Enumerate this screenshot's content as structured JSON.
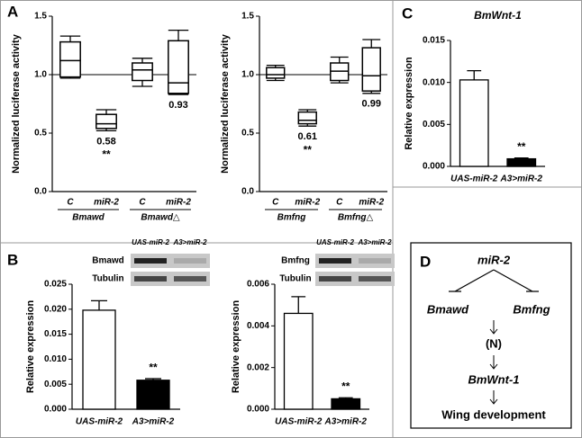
{
  "panel_labels": [
    "A",
    "B",
    "C",
    "D"
  ],
  "chart_data": [
    {
      "type": "box",
      "ylabel": "Normalized luciferase activity",
      "categories": [
        "C",
        "miR-2",
        "C",
        "miR-2"
      ],
      "group_labels": [
        "Bmawd",
        "Bmawd△"
      ],
      "boxes": [
        {
          "min": 0.97,
          "q1": 0.98,
          "median": 1.12,
          "q3": 1.28,
          "max": 1.33
        },
        {
          "min": 0.52,
          "q1": 0.54,
          "median": 0.58,
          "q3": 0.66,
          "max": 0.7
        },
        {
          "min": 0.9,
          "q1": 0.95,
          "median": 1.04,
          "q3": 1.1,
          "max": 1.14
        },
        {
          "min": 0.83,
          "q1": 0.84,
          "median": 0.93,
          "q3": 1.29,
          "max": 1.38
        }
      ],
      "value_labels": [
        null,
        "0.58",
        null,
        "0.93"
      ],
      "significance": [
        null,
        "**",
        null,
        null
      ],
      "hline": 1,
      "color": "#000000",
      "ylim": [
        0,
        1.5
      ],
      "yticks": [
        {
          "value": 0,
          "label": "0.0"
        },
        0.5,
        {
          "value": 1,
          "label": "1.0"
        },
        1.5
      ]
    },
    {
      "type": "box",
      "ylabel": "Normalized luciferase activity",
      "categories": [
        "C",
        "miR-2",
        "C",
        "miR-2"
      ],
      "group_labels": [
        "Bmfng",
        "Bmfng△"
      ],
      "boxes": [
        {
          "min": 0.95,
          "q1": 0.97,
          "median": 1.0,
          "q3": 1.06,
          "max": 1.08
        },
        {
          "min": 0.56,
          "q1": 0.58,
          "median": 0.61,
          "q3": 0.68,
          "max": 0.7
        },
        {
          "min": 0.93,
          "q1": 0.95,
          "median": 1.03,
          "q3": 1.1,
          "max": 1.15
        },
        {
          "min": 0.84,
          "q1": 0.86,
          "median": 0.99,
          "q3": 1.23,
          "max": 1.3
        }
      ],
      "value_labels": [
        null,
        "0.61",
        null,
        "0.99"
      ],
      "significance": [
        null,
        "**",
        null,
        null
      ],
      "hline": 1,
      "color": "#000000",
      "ylim": [
        0,
        1.5
      ],
      "yticks": [
        {
          "value": 0,
          "label": "0.0"
        },
        0.5,
        {
          "value": 1,
          "label": "1.0"
        },
        1.5
      ]
    },
    {
      "type": "bar",
      "title": "BmWnt-1",
      "ylabel": "Relative expression",
      "categories": [
        "UAS-miR-2",
        "A3>miR-2"
      ],
      "values": [
        0.0103,
        0.0009
      ],
      "errors": [
        0.0011,
        0.0001
      ],
      "significance": [
        null,
        "**"
      ],
      "colors": [
        "#ffffff",
        "#000000"
      ],
      "ylim": [
        0,
        0.015
      ],
      "yticks": [
        {
          "value": 0,
          "label": "0.000"
        },
        {
          "value": 0.005,
          "label": "0.005"
        },
        {
          "value": 0.01,
          "label": "0.010"
        },
        {
          "value": 0.015,
          "label": "0.015"
        }
      ]
    },
    {
      "type": "bar",
      "ylabel": "Relative expression",
      "categories": [
        "UAS-miR-2",
        "A3>miR-2"
      ],
      "values": [
        0.0198,
        0.0058
      ],
      "errors": [
        0.0019,
        0.0003
      ],
      "significance": [
        null,
        "**"
      ],
      "colors": [
        "#ffffff",
        "#000000"
      ],
      "blot": {
        "lanes": [
          "UAS-miR-2",
          "A3>miR-2"
        ],
        "rows": [
          "Bmawd",
          "Tubulin"
        ]
      },
      "ylim": [
        0,
        0.025
      ],
      "yticks": [
        {
          "value": 0,
          "label": "0.000"
        },
        {
          "value": 0.005,
          "label": "0.005"
        },
        {
          "value": 0.01,
          "label": "0.010"
        },
        {
          "value": 0.015,
          "label": "0.015"
        },
        {
          "value": 0.02,
          "label": "0.020"
        },
        {
          "value": 0.025,
          "label": "0.025"
        }
      ]
    },
    {
      "type": "bar",
      "ylabel": "Relative expression",
      "categories": [
        "UAS-miR-2",
        "A3>miR-2"
      ],
      "values": [
        0.0046,
        0.0005
      ],
      "errors": [
        0.0008,
        5e-05
      ],
      "significance": [
        null,
        "**"
      ],
      "colors": [
        "#ffffff",
        "#000000"
      ],
      "blot": {
        "lanes": [
          "UAS-miR-2",
          "A3>miR-2"
        ],
        "rows": [
          "Bmfng",
          "Tubulin"
        ]
      },
      "ylim": [
        0,
        0.006
      ],
      "yticks": [
        {
          "value": 0,
          "label": "0.000"
        },
        {
          "value": 0.002,
          "label": "0.002"
        },
        {
          "value": 0.004,
          "label": "0.004"
        },
        {
          "value": 0.006,
          "label": "0.006"
        }
      ]
    }
  ],
  "diagram": {
    "nodes": [
      "miR-2",
      "Bmawd",
      "Bmfng",
      "(N)",
      "BmWnt-1",
      "Wing development"
    ]
  }
}
